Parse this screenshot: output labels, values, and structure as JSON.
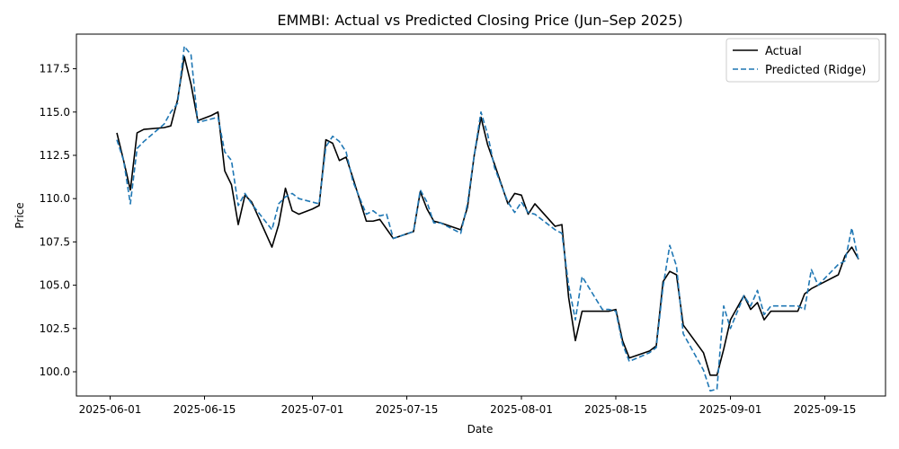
{
  "chart_data": {
    "type": "line",
    "title": "EMMBI: Actual vs Predicted Closing Price (Jun–Sep 2025)",
    "xlabel": "Date",
    "ylabel": "Price",
    "xlim": [
      "2025-05-27",
      "2025-09-24"
    ],
    "ylim": [
      98.6,
      119.5
    ],
    "x_ticks": [
      "2025-06-01",
      "2025-06-15",
      "2025-07-01",
      "2025-07-15",
      "2025-08-01",
      "2025-08-15",
      "2025-09-01",
      "2025-09-15"
    ],
    "y_ticks": [
      100.0,
      102.5,
      105.0,
      107.5,
      110.0,
      112.5,
      115.0,
      117.5
    ],
    "y_tick_labels": [
      "100.0",
      "102.5",
      "105.0",
      "107.5",
      "110.0",
      "112.5",
      "115.0",
      "117.5"
    ],
    "legend_position": "top-right",
    "grid": false,
    "series": [
      {
        "name": "Actual",
        "color": "#000000",
        "style": "solid",
        "points": [
          [
            "2025-06-02",
            113.8
          ],
          [
            "2025-06-03",
            112.2
          ],
          [
            "2025-06-04",
            110.5
          ],
          [
            "2025-06-05",
            113.8
          ],
          [
            "2025-06-06",
            114.0
          ],
          [
            "2025-06-09",
            114.1
          ],
          [
            "2025-06-10",
            114.2
          ],
          [
            "2025-06-11",
            115.7
          ],
          [
            "2025-06-12",
            118.2
          ],
          [
            "2025-06-13",
            116.6
          ],
          [
            "2025-06-14",
            114.5
          ],
          [
            "2025-06-16",
            114.8
          ],
          [
            "2025-06-17",
            115.0
          ],
          [
            "2025-06-18",
            111.6
          ],
          [
            "2025-06-19",
            110.8
          ],
          [
            "2025-06-20",
            108.5
          ],
          [
            "2025-06-21",
            110.2
          ],
          [
            "2025-06-22",
            109.8
          ],
          [
            "2025-06-25",
            107.2
          ],
          [
            "2025-06-26",
            108.5
          ],
          [
            "2025-06-27",
            110.6
          ],
          [
            "2025-06-28",
            109.3
          ],
          [
            "2025-06-29",
            109.1
          ],
          [
            "2025-07-01",
            109.4
          ],
          [
            "2025-07-02",
            109.6
          ],
          [
            "2025-07-03",
            113.4
          ],
          [
            "2025-07-04",
            113.2
          ],
          [
            "2025-07-05",
            112.2
          ],
          [
            "2025-07-06",
            112.4
          ],
          [
            "2025-07-07",
            111.2
          ],
          [
            "2025-07-09",
            108.7
          ],
          [
            "2025-07-10",
            108.7
          ],
          [
            "2025-07-11",
            108.8
          ],
          [
            "2025-07-13",
            107.7
          ],
          [
            "2025-07-16",
            108.1
          ],
          [
            "2025-07-17",
            110.4
          ],
          [
            "2025-07-18",
            109.4
          ],
          [
            "2025-07-19",
            108.7
          ],
          [
            "2025-07-20",
            108.6
          ],
          [
            "2025-07-23",
            108.2
          ],
          [
            "2025-07-24",
            109.5
          ],
          [
            "2025-07-25",
            112.5
          ],
          [
            "2025-07-26",
            114.7
          ],
          [
            "2025-07-27",
            113.1
          ],
          [
            "2025-07-28",
            112.0
          ],
          [
            "2025-07-30",
            109.7
          ],
          [
            "2025-07-31",
            110.3
          ],
          [
            "2025-08-01",
            110.2
          ],
          [
            "2025-08-02",
            109.1
          ],
          [
            "2025-08-03",
            109.7
          ],
          [
            "2025-08-06",
            108.4
          ],
          [
            "2025-08-07",
            108.5
          ],
          [
            "2025-08-08",
            104.3
          ],
          [
            "2025-08-09",
            101.8
          ],
          [
            "2025-08-10",
            103.5
          ],
          [
            "2025-08-13",
            103.5
          ],
          [
            "2025-08-14",
            103.5
          ],
          [
            "2025-08-15",
            103.6
          ],
          [
            "2025-08-16",
            101.8
          ],
          [
            "2025-08-17",
            100.8
          ],
          [
            "2025-08-20",
            101.2
          ],
          [
            "2025-08-21",
            101.5
          ],
          [
            "2025-08-22",
            105.2
          ],
          [
            "2025-08-23",
            105.8
          ],
          [
            "2025-08-24",
            105.6
          ],
          [
            "2025-08-25",
            102.7
          ],
          [
            "2025-08-28",
            101.1
          ],
          [
            "2025-08-29",
            99.8
          ],
          [
            "2025-08-30",
            99.8
          ],
          [
            "2025-08-31",
            101.3
          ],
          [
            "2025-09-01",
            103.0
          ],
          [
            "2025-09-03",
            104.4
          ],
          [
            "2025-09-04",
            103.6
          ],
          [
            "2025-09-05",
            104.0
          ],
          [
            "2025-09-06",
            103.0
          ],
          [
            "2025-09-07",
            103.5
          ],
          [
            "2025-09-10",
            103.5
          ],
          [
            "2025-09-11",
            103.5
          ],
          [
            "2025-09-12",
            104.5
          ],
          [
            "2025-09-13",
            104.8
          ],
          [
            "2025-09-14",
            105.0
          ],
          [
            "2025-09-17",
            105.6
          ],
          [
            "2025-09-18",
            106.7
          ],
          [
            "2025-09-19",
            107.2
          ],
          [
            "2025-09-20",
            106.5
          ]
        ]
      },
      {
        "name": "Predicted (Ridge)",
        "color": "#1f77b4",
        "style": "dashed",
        "points": [
          [
            "2025-06-02",
            113.4
          ],
          [
            "2025-06-03",
            112.2
          ],
          [
            "2025-06-04",
            109.7
          ],
          [
            "2025-06-05",
            112.9
          ],
          [
            "2025-06-06",
            113.3
          ],
          [
            "2025-06-09",
            114.3
          ],
          [
            "2025-06-10",
            115.0
          ],
          [
            "2025-06-11",
            115.5
          ],
          [
            "2025-06-12",
            118.8
          ],
          [
            "2025-06-13",
            118.3
          ],
          [
            "2025-06-14",
            114.4
          ],
          [
            "2025-06-16",
            114.6
          ],
          [
            "2025-06-17",
            114.7
          ],
          [
            "2025-06-18",
            112.7
          ],
          [
            "2025-06-19",
            112.2
          ],
          [
            "2025-06-20",
            109.6
          ],
          [
            "2025-06-21",
            110.3
          ],
          [
            "2025-06-22",
            109.7
          ],
          [
            "2025-06-25",
            108.2
          ],
          [
            "2025-06-26",
            109.7
          ],
          [
            "2025-06-27",
            110.1
          ],
          [
            "2025-06-28",
            110.3
          ],
          [
            "2025-06-29",
            110.0
          ],
          [
            "2025-07-01",
            109.8
          ],
          [
            "2025-07-02",
            109.7
          ],
          [
            "2025-07-03",
            113.0
          ],
          [
            "2025-07-04",
            113.6
          ],
          [
            "2025-07-05",
            113.3
          ],
          [
            "2025-07-06",
            112.7
          ],
          [
            "2025-07-07",
            111.0
          ],
          [
            "2025-07-09",
            109.1
          ],
          [
            "2025-07-10",
            109.3
          ],
          [
            "2025-07-11",
            109.0
          ],
          [
            "2025-07-12",
            109.1
          ],
          [
            "2025-07-13",
            107.7
          ],
          [
            "2025-07-16",
            108.1
          ],
          [
            "2025-07-17",
            110.5
          ],
          [
            "2025-07-18",
            109.8
          ],
          [
            "2025-07-19",
            108.6
          ],
          [
            "2025-07-20",
            108.6
          ],
          [
            "2025-07-23",
            108.0
          ],
          [
            "2025-07-24",
            109.7
          ],
          [
            "2025-07-25",
            112.5
          ],
          [
            "2025-07-26",
            115.0
          ],
          [
            "2025-07-27",
            113.7
          ],
          [
            "2025-07-28",
            111.8
          ],
          [
            "2025-07-30",
            109.8
          ],
          [
            "2025-07-31",
            109.2
          ],
          [
            "2025-08-01",
            109.8
          ],
          [
            "2025-08-02",
            109.2
          ],
          [
            "2025-08-03",
            109.1
          ],
          [
            "2025-08-06",
            108.2
          ],
          [
            "2025-08-07",
            108.0
          ],
          [
            "2025-08-08",
            105.0
          ],
          [
            "2025-08-09",
            103.0
          ],
          [
            "2025-08-10",
            105.5
          ],
          [
            "2025-08-13",
            103.6
          ],
          [
            "2025-08-14",
            103.6
          ],
          [
            "2025-08-15",
            103.5
          ],
          [
            "2025-08-16",
            101.6
          ],
          [
            "2025-08-17",
            100.6
          ],
          [
            "2025-08-20",
            101.1
          ],
          [
            "2025-08-21",
            101.4
          ],
          [
            "2025-08-22",
            104.9
          ],
          [
            "2025-08-23",
            107.3
          ],
          [
            "2025-08-24",
            106.1
          ],
          [
            "2025-08-25",
            102.2
          ],
          [
            "2025-08-28",
            100.1
          ],
          [
            "2025-08-29",
            98.9
          ],
          [
            "2025-08-30",
            99.0
          ],
          [
            "2025-08-31",
            103.8
          ],
          [
            "2025-09-01",
            102.5
          ],
          [
            "2025-09-03",
            104.4
          ],
          [
            "2025-09-04",
            103.8
          ],
          [
            "2025-09-05",
            104.7
          ],
          [
            "2025-09-06",
            103.3
          ],
          [
            "2025-09-07",
            103.8
          ],
          [
            "2025-09-10",
            103.8
          ],
          [
            "2025-09-11",
            103.8
          ],
          [
            "2025-09-12",
            103.6
          ],
          [
            "2025-09-13",
            105.9
          ],
          [
            "2025-09-14",
            105.0
          ],
          [
            "2025-09-17",
            106.2
          ],
          [
            "2025-09-18",
            106.4
          ],
          [
            "2025-09-19",
            108.3
          ],
          [
            "2025-09-20",
            106.4
          ]
        ]
      }
    ]
  }
}
